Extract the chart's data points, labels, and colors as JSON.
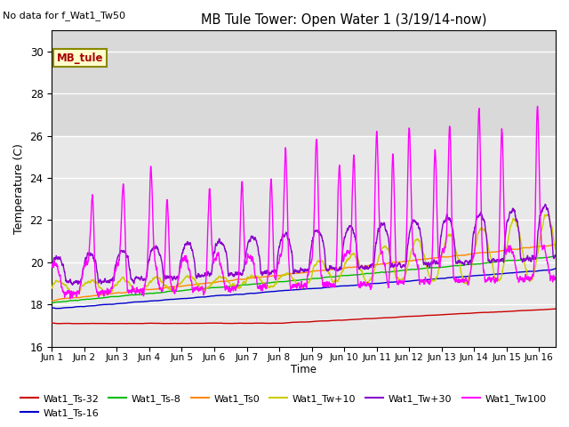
{
  "title": "MB Tule Tower: Open Water 1 (3/19/14-now)",
  "top_left_text": "No data for f_Wat1_Tw50",
  "ylabel": "Temperature (C)",
  "xlabel": "Time",
  "ylim": [
    16,
    31
  ],
  "yticks": [
    16,
    18,
    20,
    22,
    24,
    26,
    28,
    30
  ],
  "xtick_labels": [
    "Jun 1",
    "Jun 2",
    "Jun 3",
    "Jun 4",
    "Jun 5",
    "Jun 6",
    "Jun 7",
    "Jun 8",
    "Jun 9",
    "Jun 10",
    "Jun 11",
    "Jun 12",
    "Jun 13",
    "Jun 14",
    "Jun 15",
    "Jun 16"
  ],
  "series_colors": {
    "Wat1_Ts-32": "#cc0000",
    "Wat1_Ts-16": "#0000cc",
    "Wat1_Ts-8": "#00bb00",
    "Wat1_Ts0": "#ff8800",
    "Wat1_Tw+10": "#cccc00",
    "Wat1_Tw+30": "#8800cc",
    "Wat1_Tw100": "#ff00ff"
  },
  "mb_tule_box": {
    "text": "MB_tule",
    "facecolor": "#ffffcc",
    "edgecolor": "#888800",
    "textcolor": "#aa0000"
  },
  "plot_bg_top": "#d8d8d8",
  "plot_bg_bottom": "#e8e8e8",
  "fig_bg": "#ffffff",
  "grid_color": "#ffffff"
}
